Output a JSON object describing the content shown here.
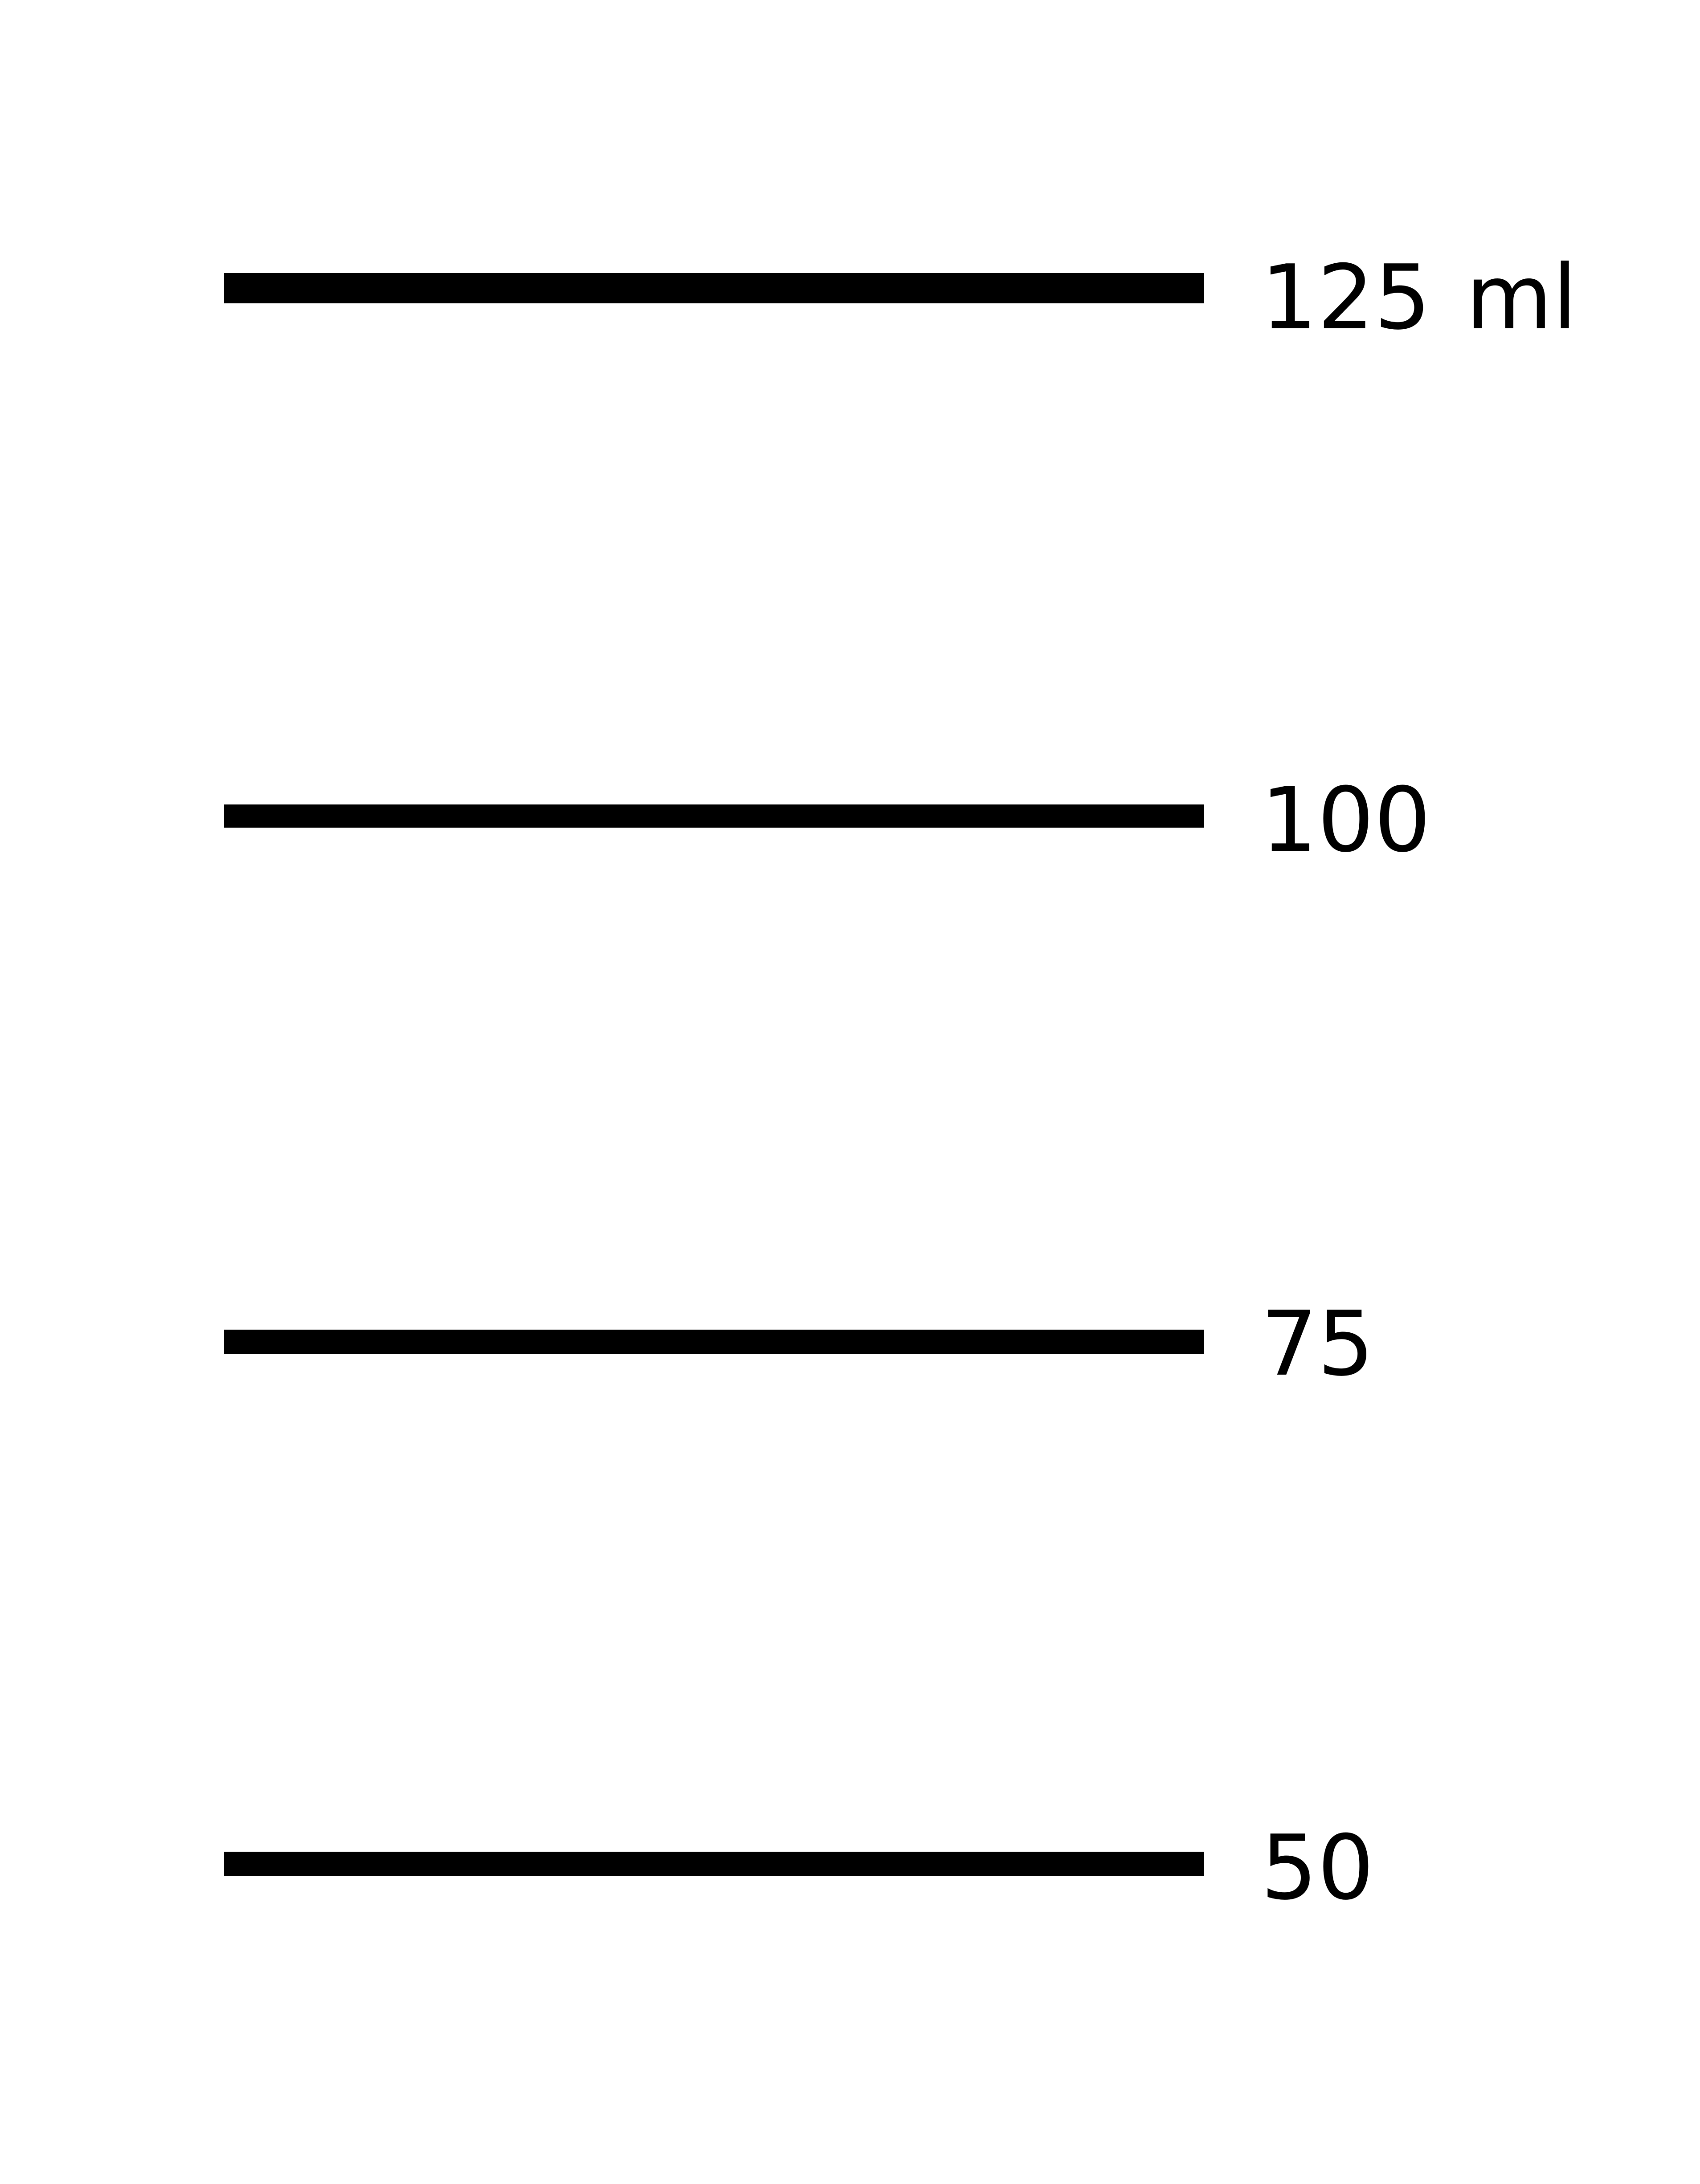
{
  "unit": "ml",
  "line_color": "#000000",
  "marks": [
    {
      "value": "125"
    },
    {
      "value": "100"
    },
    {
      "value": "75"
    },
    {
      "value": "50"
    }
  ]
}
